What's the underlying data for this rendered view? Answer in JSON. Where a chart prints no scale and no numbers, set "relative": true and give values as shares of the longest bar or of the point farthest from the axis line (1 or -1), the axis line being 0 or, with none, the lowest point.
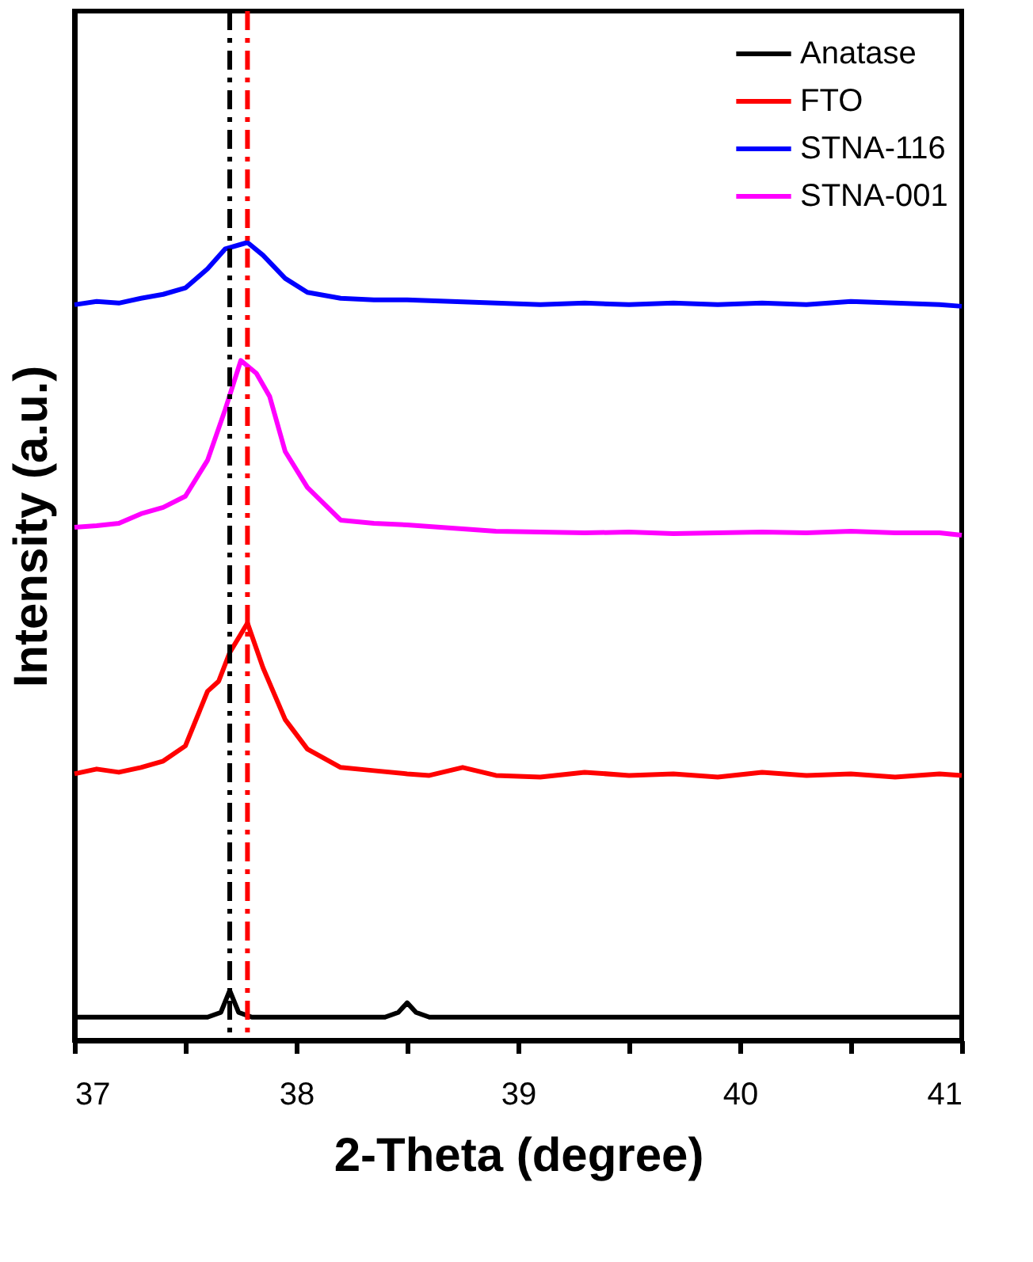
{
  "chart_data": {
    "type": "line",
    "relative": true,
    "xlabel": "2-Theta (degree)",
    "ylabel": "Intensity (a.u.)",
    "xlim": [
      37,
      41
    ],
    "xticks": [
      37,
      {
        "value": 37.5,
        "label": null
      },
      38,
      {
        "value": 38.5,
        "label": null
      },
      39,
      {
        "value": 39.5,
        "label": null
      },
      40,
      {
        "value": 40.5,
        "label": null
      },
      41
    ],
    "legend": "top right",
    "grid": false,
    "marker": "none",
    "line_style": "solid",
    "series": [
      {
        "name": "Anatase",
        "color": "#000000",
        "x": [
          37,
          37.6,
          37.66,
          37.7,
          37.74,
          37.8,
          38.4,
          38.46,
          38.5,
          38.54,
          38.6,
          41
        ],
        "values": [
          0.029,
          0.029,
          0.035,
          0.0625,
          0.035,
          0.029,
          0.029,
          0.035,
          0.047,
          0.035,
          0.029,
          0.029
        ]
      },
      {
        "name": "FTO",
        "color": "#ff0000",
        "x": [
          37,
          37.1,
          37.2,
          37.3,
          37.4,
          37.5,
          37.6,
          37.65,
          37.7,
          37.78,
          37.85,
          37.95,
          38.05,
          38.2,
          38.35,
          38.5,
          38.6,
          38.75,
          38.9,
          39.1,
          39.3,
          39.5,
          39.7,
          39.9,
          40.1,
          40.3,
          40.5,
          40.7,
          40.9,
          41
        ],
        "values": [
          0.334,
          0.34,
          0.336,
          0.342,
          0.35,
          0.369,
          0.4375,
          0.45,
          0.486,
          0.523,
          0.467,
          0.402,
          0.365,
          0.342,
          0.338,
          0.334,
          0.332,
          0.342,
          0.332,
          0.33,
          0.336,
          0.332,
          0.334,
          0.33,
          0.336,
          0.332,
          0.334,
          0.33,
          0.334,
          0.332
        ]
      },
      {
        "name": "STNA-116",
        "color": "#0000ff",
        "x": [
          37,
          37.1,
          37.2,
          37.3,
          37.4,
          37.5,
          37.6,
          37.68,
          37.78,
          37.85,
          37.95,
          38.05,
          38.2,
          38.35,
          38.5,
          38.7,
          38.9,
          39.1,
          39.3,
          39.5,
          39.7,
          39.9,
          40.1,
          40.3,
          40.5,
          40.7,
          40.9,
          41
        ],
        "values": [
          0.922,
          0.926,
          0.924,
          0.93,
          0.935,
          0.943,
          0.967,
          0.992,
          1,
          0.984,
          0.955,
          0.9375,
          0.93,
          0.928,
          0.928,
          0.926,
          0.924,
          0.922,
          0.924,
          0.922,
          0.924,
          0.922,
          0.924,
          0.922,
          0.926,
          0.924,
          0.922,
          0.92
        ]
      },
      {
        "name": "STNA-001",
        "color": "#ff00ff",
        "x": [
          37,
          37.1,
          37.2,
          37.3,
          37.4,
          37.5,
          37.6,
          37.68,
          37.75,
          37.82,
          37.88,
          37.95,
          38.05,
          38.2,
          38.35,
          38.5,
          38.7,
          38.9,
          39.1,
          39.3,
          39.5,
          39.7,
          39.9,
          40.1,
          40.3,
          40.5,
          40.7,
          40.9,
          41
        ],
        "values": [
          0.643,
          0.645,
          0.648,
          0.66,
          0.668,
          0.682,
          0.727,
          0.791,
          0.852,
          0.836,
          0.807,
          0.738,
          0.693,
          0.652,
          0.648,
          0.646,
          0.642,
          0.638,
          0.637,
          0.636,
          0.637,
          0.635,
          0.636,
          0.637,
          0.636,
          0.638,
          0.636,
          0.636,
          0.633
        ]
      }
    ],
    "ref_lines": [
      {
        "axis": "x",
        "value": 37.7,
        "color": "#000000",
        "line_style": "dashdot"
      },
      {
        "axis": "x",
        "value": 37.78,
        "color": "#ff0000",
        "line_style": "dashdot"
      }
    ]
  }
}
